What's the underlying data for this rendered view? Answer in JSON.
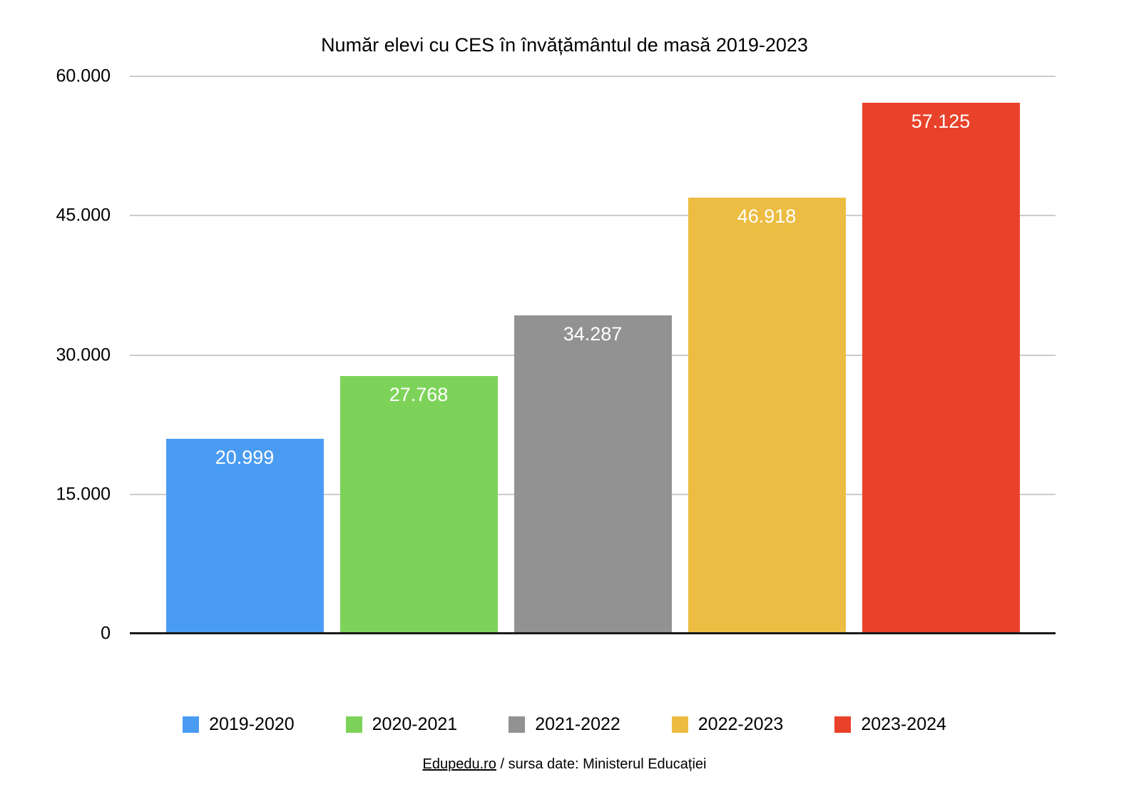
{
  "chart_data": {
    "type": "bar",
    "title": "Număr elevi cu CES în învățământul de masă 2019-2023",
    "categories": [
      "2019-2020",
      "2020-2021",
      "2021-2022",
      "2022-2023",
      "2023-2024"
    ],
    "values": [
      20999,
      27768,
      34287,
      46918,
      57125
    ],
    "value_labels": [
      "20.999",
      "27.768",
      "34.287",
      "46.918",
      "57.125"
    ],
    "bar_colors": [
      "#4A9CF2",
      "#7DD35A",
      "#929292",
      "#ECBD42",
      "#E9422A"
    ],
    "xlabel": "",
    "ylabel": "",
    "y_axis": {
      "min": 0,
      "max": 60000,
      "tick_values": [
        0,
        15000,
        30000,
        45000,
        60000
      ],
      "tick_labels": [
        "0",
        "15.000",
        "30.000",
        "45.000",
        "60.000"
      ]
    },
    "grid": true,
    "legend_position": "bottom"
  },
  "footer": {
    "link_text": "Edupedu.ro",
    "rest_text": " / sursa date: Ministerul Educației"
  }
}
